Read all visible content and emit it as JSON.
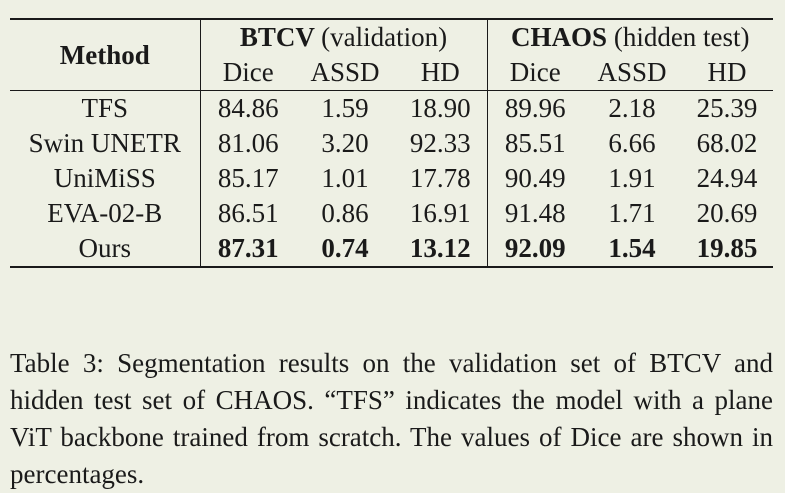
{
  "table": {
    "method_header": "Method",
    "groups": [
      {
        "name": "BTCV",
        "qualifier": "(validation)"
      },
      {
        "name": "CHAOS",
        "qualifier": "(hidden test)"
      }
    ],
    "metrics": [
      "Dice",
      "ASSD",
      "HD",
      "Dice",
      "ASSD",
      "HD"
    ],
    "rows": [
      {
        "method": "TFS",
        "values": [
          "84.86",
          "1.59",
          "18.90",
          "89.96",
          "2.18",
          "25.39"
        ],
        "bold": false
      },
      {
        "method": "Swin UNETR",
        "values": [
          "81.06",
          "3.20",
          "92.33",
          "85.51",
          "6.66",
          "68.02"
        ],
        "bold": false
      },
      {
        "method": "UniMiSS",
        "values": [
          "85.17",
          "1.01",
          "17.78",
          "90.49",
          "1.91",
          "24.94"
        ],
        "bold": false
      },
      {
        "method": "EVA-02-B",
        "values": [
          "86.51",
          "0.86",
          "16.91",
          "91.48",
          "1.71",
          "20.69"
        ],
        "bold": false
      },
      {
        "method": "Ours",
        "values": [
          "87.31",
          "0.74",
          "13.12",
          "92.09",
          "1.54",
          "19.85"
        ],
        "bold": true
      }
    ]
  },
  "caption": {
    "text": "Table 3: Segmentation results on the validation set of BTCV and hidden test set of CHAOS. “TFS” indicates the model with a plane ViT backbone trained from scratch. The values of Dice are shown in percentages."
  }
}
